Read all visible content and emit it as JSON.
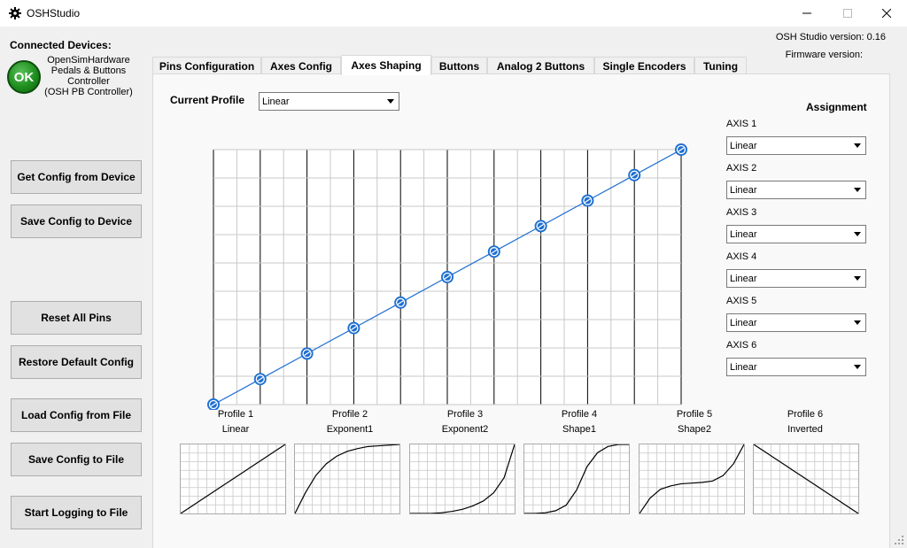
{
  "window": {
    "title": "OSHStudio",
    "minimize_label": "–",
    "maximize_label": "☐",
    "close_label": "✕"
  },
  "device": {
    "heading": "Connected Devices:",
    "status": "OK",
    "status_color": "#1e8f1e",
    "line1": "OpenSimHardware",
    "line2": "Pedals & Buttons",
    "line3": "Controller",
    "line4": "(OSH PB Controller)"
  },
  "version": {
    "studio": "OSH Studio version: 0.16",
    "firmware": "Firmware version:"
  },
  "buttons": {
    "get_config": "Get Config from Device",
    "save_config_device": "Save Config to Device",
    "reset_pins": "Reset All Pins",
    "restore_default": "Restore Default Config",
    "load_file": "Load Config from File",
    "save_file": "Save Config to File",
    "start_logging": "Start Logging to File"
  },
  "tabs": [
    {
      "label": "Pins Configuration"
    },
    {
      "label": "Axes Config"
    },
    {
      "label": "Axes Shaping"
    },
    {
      "label": "Buttons"
    },
    {
      "label": "Analog 2 Buttons"
    },
    {
      "label": "Single Encoders"
    },
    {
      "label": "Tuning"
    }
  ],
  "shaping": {
    "current_profile_label": "Current Profile",
    "current_profile_value": "Linear",
    "curve_points": [
      0,
      10,
      20,
      30,
      40,
      50,
      60,
      70,
      80,
      90,
      100
    ],
    "curve_color": "#1e6fd0"
  },
  "assignment": {
    "heading": "Assignment",
    "axes": [
      {
        "label": "AXIS 1",
        "value": "Linear"
      },
      {
        "label": "AXIS 2",
        "value": "Linear"
      },
      {
        "label": "AXIS 3",
        "value": "Linear"
      },
      {
        "label": "AXIS 4",
        "value": "Linear"
      },
      {
        "label": "AXIS 5",
        "value": "Linear"
      },
      {
        "label": "AXIS 6",
        "value": "Linear"
      }
    ]
  },
  "profiles": [
    {
      "title": "Profile 1",
      "name": "Linear",
      "points": [
        0,
        10,
        20,
        30,
        40,
        50,
        60,
        70,
        80,
        90,
        100
      ]
    },
    {
      "title": "Profile 2",
      "name": "Exponent1",
      "points": [
        0,
        30,
        55,
        72,
        83,
        90,
        94,
        97,
        98,
        99,
        100
      ]
    },
    {
      "title": "Profile 3",
      "name": "Exponent2",
      "points": [
        0,
        0,
        0,
        1,
        3,
        6,
        11,
        18,
        30,
        52,
        100
      ]
    },
    {
      "title": "Profile 4",
      "name": "Shape1",
      "points": [
        0,
        0,
        1,
        4,
        12,
        34,
        68,
        88,
        97,
        100,
        100
      ]
    },
    {
      "title": "Profile 5",
      "name": "Shape2",
      "points": [
        0,
        22,
        35,
        40,
        43,
        44,
        45,
        47,
        55,
        72,
        100
      ]
    },
    {
      "title": "Profile 6",
      "name": "Inverted",
      "points": [
        100,
        90,
        80,
        70,
        60,
        50,
        40,
        30,
        20,
        10,
        0
      ]
    }
  ]
}
